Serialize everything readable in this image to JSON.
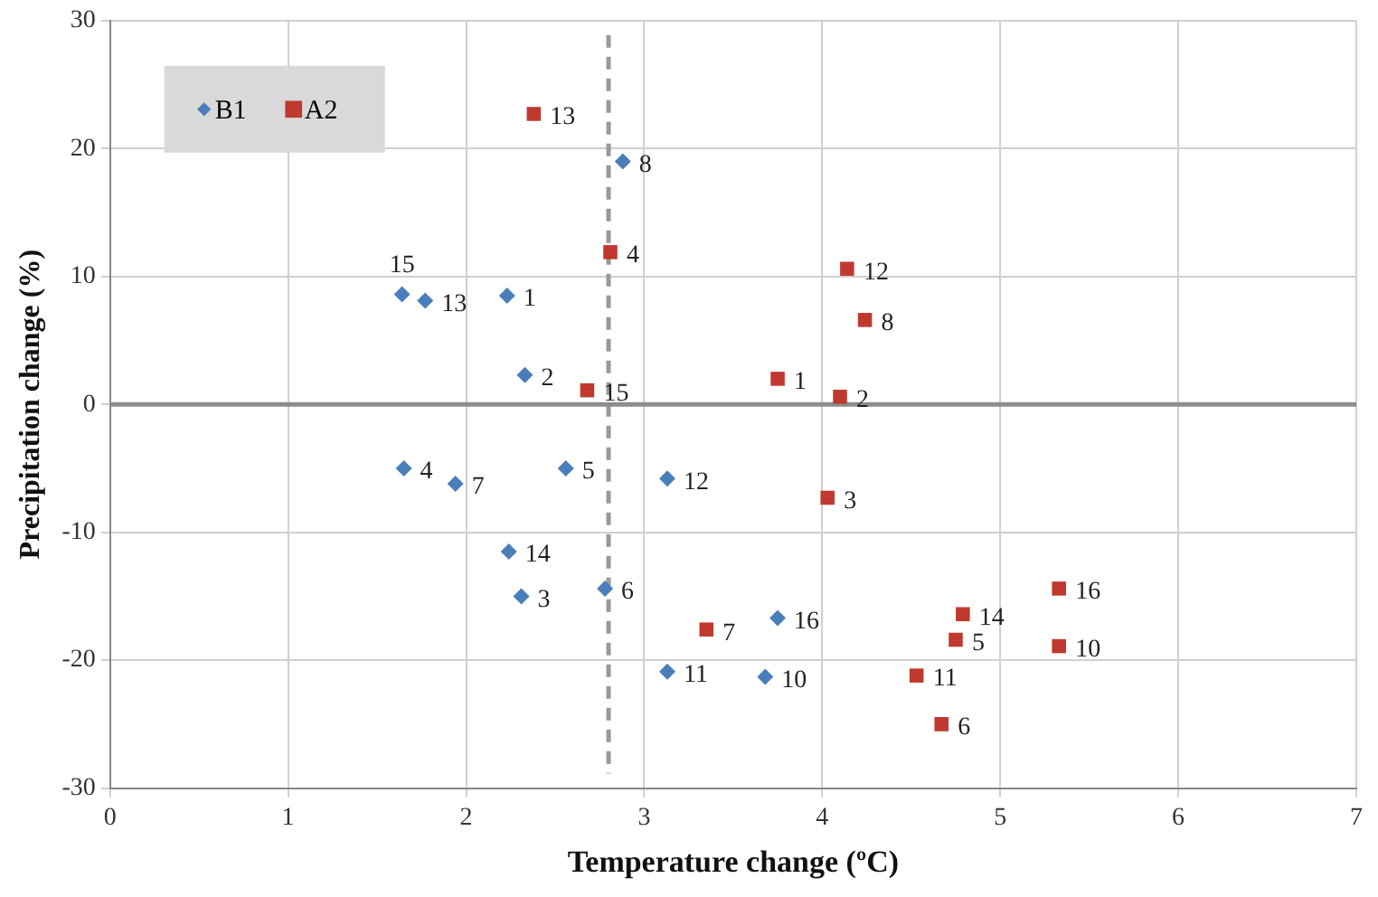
{
  "chart_data": {
    "type": "scatter",
    "xlabel": "Temperature change (ºC)",
    "ylabel": "Precipitation change (%)",
    "series": [
      {
        "name": "B1",
        "color": "#4a7ebb",
        "marker": "diamond",
        "x": [
          2.23,
          2.33,
          2.31,
          1.65,
          2.56,
          2.78,
          1.94,
          2.88,
          3.68,
          3.13,
          3.13,
          1.77,
          2.24,
          1.64,
          3.75
        ],
        "values": [
          8.5,
          2.3,
          -15.0,
          -5.0,
          -5.0,
          -14.4,
          -6.2,
          19.0,
          -21.3,
          -20.9,
          -5.8,
          8.1,
          -11.5,
          8.6,
          -16.7
        ]
      },
      {
        "name": "A2",
        "color": "#c0392f",
        "marker": "square",
        "x": [
          3.75,
          4.1,
          4.03,
          2.81,
          4.75,
          4.67,
          3.35,
          4.24,
          5.33,
          4.53,
          4.14,
          2.38,
          4.79,
          2.68,
          5.33
        ],
        "values": [
          2.0,
          0.6,
          -7.3,
          11.9,
          -18.4,
          -25.0,
          -17.6,
          6.6,
          -18.9,
          -21.2,
          10.6,
          22.7,
          -16.4,
          1.1,
          -14.4
        ]
      }
    ],
    "annotations": [
      {
        "text": "1",
        "x": 2.23,
        "y": 8.5
      },
      {
        "text": "2",
        "x": 2.33,
        "y": 2.3
      },
      {
        "text": "3",
        "x": 2.31,
        "y": -15.0
      },
      {
        "text": "4",
        "x": 1.65,
        "y": -5.0
      },
      {
        "text": "5",
        "x": 2.56,
        "y": -5.0
      },
      {
        "text": "6",
        "x": 2.78,
        "y": -14.4
      },
      {
        "text": "7",
        "x": 1.94,
        "y": -6.2
      },
      {
        "text": "8",
        "x": 2.88,
        "y": 19.0
      },
      {
        "text": "10",
        "x": 3.68,
        "y": -21.3
      },
      {
        "text": "11",
        "x": 3.13,
        "y": -20.9
      },
      {
        "text": "12",
        "x": 3.13,
        "y": -5.8
      },
      {
        "text": "13",
        "x": 1.77,
        "y": 8.1
      },
      {
        "text": "14",
        "x": 2.24,
        "y": -11.5
      },
      {
        "text": "15",
        "x": 1.64,
        "y": 8.6
      },
      {
        "text": "16",
        "x": 3.75,
        "y": -16.7
      },
      {
        "text": "1",
        "x": 3.75,
        "y": 2.0
      },
      {
        "text": "2",
        "x": 4.1,
        "y": 0.6
      },
      {
        "text": "3",
        "x": 4.03,
        "y": -7.3
      },
      {
        "text": "4",
        "x": 2.81,
        "y": 11.9
      },
      {
        "text": "5",
        "x": 4.75,
        "y": -18.4
      },
      {
        "text": "6",
        "x": 4.67,
        "y": -25.0
      },
      {
        "text": "7",
        "x": 3.35,
        "y": -17.6
      },
      {
        "text": "8",
        "x": 4.24,
        "y": 6.6
      },
      {
        "text": "10",
        "x": 5.33,
        "y": -18.9
      },
      {
        "text": "11",
        "x": 4.53,
        "y": -21.2
      },
      {
        "text": "12",
        "x": 4.14,
        "y": 10.6
      },
      {
        "text": "13",
        "x": 2.38,
        "y": 22.7
      },
      {
        "text": "14",
        "x": 4.79,
        "y": -16.4
      },
      {
        "text": "15",
        "x": 2.68,
        "y": 1.1
      },
      {
        "text": "16",
        "x": 5.33,
        "y": -14.4
      }
    ],
    "ref_lines": [
      {
        "axis": "x",
        "value": 2.8,
        "color": "#999999",
        "line_style": "dashed"
      },
      {
        "axis": "y",
        "value": 0,
        "color": "#8c8c8c",
        "line_style": "solid"
      }
    ],
    "xlim": [
      0,
      7
    ],
    "xticks": [
      0,
      1,
      2,
      3,
      4,
      5,
      6,
      7
    ],
    "ylim": [
      -30,
      30
    ],
    "yticks": [
      -30,
      -20,
      -10,
      0,
      10,
      20,
      30
    ],
    "grid": true,
    "legend": "top left"
  }
}
